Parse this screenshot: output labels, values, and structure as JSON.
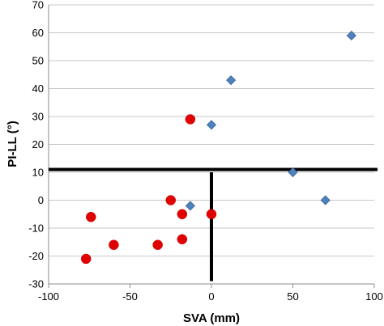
{
  "chart_data": {
    "type": "scatter",
    "title": "",
    "xlabel": "SVA (mm)",
    "ylabel": "PI-LL (°)",
    "xlim": [
      -100,
      100
    ],
    "ylim": [
      -30,
      70
    ],
    "x_ticks": [
      -100,
      -50,
      0,
      50,
      100
    ],
    "y_ticks": [
      -30,
      -20,
      -10,
      0,
      10,
      20,
      30,
      40,
      50,
      60,
      70
    ],
    "grid": "horizontal",
    "legend": "none",
    "reference_lines": [
      {
        "orientation": "horizontal",
        "value": 11
      },
      {
        "orientation": "vertical",
        "value": 0,
        "from": -29,
        "to": 10
      }
    ],
    "series": [
      {
        "marker": "diamond",
        "color": "#4F81BD",
        "points": [
          {
            "x": -13,
            "y": -2
          },
          {
            "x": 0,
            "y": 27
          },
          {
            "x": 12,
            "y": 43
          },
          {
            "x": 50,
            "y": 10
          },
          {
            "x": 70,
            "y": 0
          },
          {
            "x": 86,
            "y": 59
          }
        ]
      },
      {
        "marker": "circle",
        "color": "#E00000",
        "points": [
          {
            "x": -77,
            "y": -21
          },
          {
            "x": -74,
            "y": -6
          },
          {
            "x": -60,
            "y": -16
          },
          {
            "x": -33,
            "y": -16
          },
          {
            "x": -25,
            "y": 0
          },
          {
            "x": -18,
            "y": -5
          },
          {
            "x": -18,
            "y": -14
          },
          {
            "x": -13,
            "y": 29
          },
          {
            "x": 0,
            "y": -5
          }
        ]
      }
    ]
  }
}
